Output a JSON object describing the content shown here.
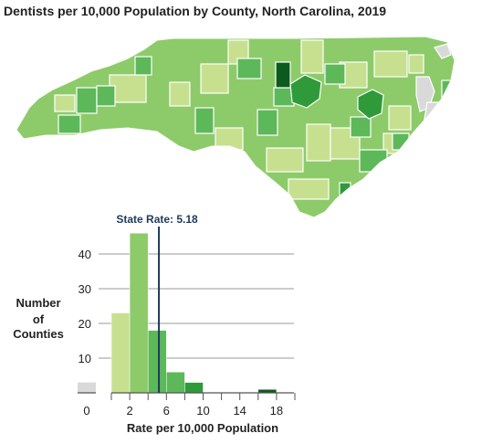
{
  "title": "Dentists per 10,000 Population by County, North Carolina, 2019",
  "colors": {
    "no_data": "#d9d9d9",
    "bin_0_4": "#c7e08f",
    "bin_2_4": "#8dcb6a",
    "bin_4_8": "#5db85a",
    "bin_8_12": "#2f9a3a",
    "bin_high": "#0d5a1e",
    "state_line": "#1d3a5c",
    "grid": "#999999",
    "map_border": "#ffffff"
  },
  "chart_data": {
    "type": "bar",
    "title": "",
    "ylabel": "Number of Counties",
    "xlabel": "Rate per 10,000 Population",
    "ylim": [
      0,
      48
    ],
    "yticks": [
      10,
      20,
      30,
      40
    ],
    "xticks": [
      "2",
      "6",
      "10",
      "14",
      "18"
    ],
    "no_data_label": "0",
    "no_data_count": 3,
    "bins": [
      {
        "x0": 0,
        "x1": 2,
        "count": 23,
        "color": "#c7e08f"
      },
      {
        "x0": 2,
        "x1": 4,
        "count": 46,
        "color": "#8dcb6a"
      },
      {
        "x0": 4,
        "x1": 6,
        "count": 18,
        "color": "#5db85a"
      },
      {
        "x0": 6,
        "x1": 8,
        "count": 6,
        "color": "#5db85a"
      },
      {
        "x0": 8,
        "x1": 10,
        "count": 3,
        "color": "#2f9a3a"
      },
      {
        "x0": 10,
        "x1": 12,
        "count": 0,
        "color": "#2f9a3a"
      },
      {
        "x0": 12,
        "x1": 14,
        "count": 0,
        "color": "#2f9a3a"
      },
      {
        "x0": 14,
        "x1": 16,
        "count": 0,
        "color": "#2f9a3a"
      },
      {
        "x0": 16,
        "x1": 18,
        "count": 1,
        "color": "#0d5a1e"
      }
    ],
    "state_rate": {
      "label": "State Rate: 5.18",
      "value": 5.18
    }
  }
}
